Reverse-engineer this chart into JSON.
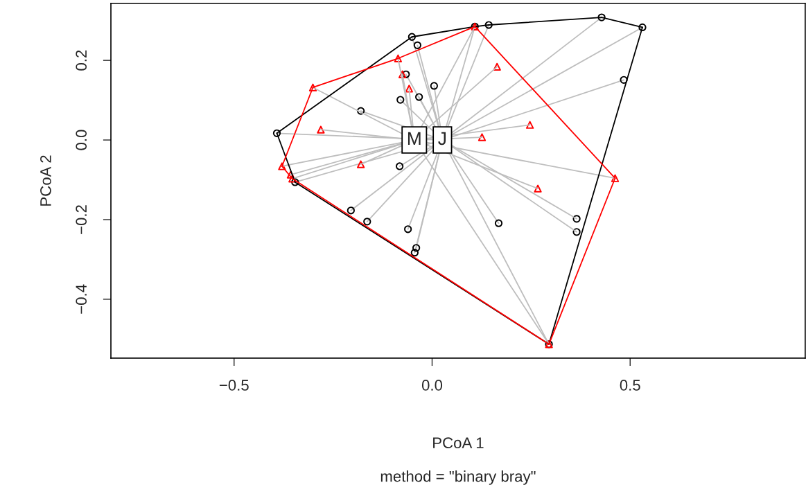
{
  "chart_data": {
    "type": "scatter",
    "xlabel": "PCoA 1",
    "ylabel": "PCoA 2",
    "subtitle": "method = \"binary bray\"",
    "xlim": [
      -0.811,
      0.942
    ],
    "ylim": [
      -0.548,
      0.343
    ],
    "xticks": [
      {
        "value": -0.5,
        "label": "−0.5"
      },
      {
        "value": 0,
        "label": "0.0"
      },
      {
        "value": 0.5,
        "label": "0.5"
      }
    ],
    "yticks": [
      {
        "value": -0.4,
        "label": "−0.4"
      },
      {
        "value": -0.2,
        "label": "−0.2"
      },
      {
        "value": 0,
        "label": "0.0"
      },
      {
        "value": 0.2,
        "label": "0.2"
      }
    ],
    "series": [
      {
        "type": "line",
        "color": "#bebebe",
        "x": [
          -0.392,
          0.026
        ],
        "values": [
          0.017,
          0
        ]
      },
      {
        "type": "line",
        "color": "#bebebe",
        "x": [
          -0.051,
          0.026
        ],
        "values": [
          0.259,
          0
        ]
      },
      {
        "type": "line",
        "color": "#bebebe",
        "x": [
          -0.037,
          0.026
        ],
        "values": [
          0.238,
          0
        ]
      },
      {
        "type": "line",
        "color": "#bebebe",
        "x": [
          -0.066,
          0.026
        ],
        "values": [
          0.165,
          0
        ]
      },
      {
        "type": "line",
        "color": "#bebebe",
        "x": [
          -0.08,
          0.026
        ],
        "values": [
          0.101,
          0
        ]
      },
      {
        "type": "line",
        "color": "#bebebe",
        "x": [
          -0.033,
          0.026
        ],
        "values": [
          0.108,
          0
        ]
      },
      {
        "type": "line",
        "color": "#bebebe",
        "x": [
          0.005,
          0.026
        ],
        "values": [
          0.136,
          0
        ]
      },
      {
        "type": "line",
        "color": "#bebebe",
        "x": [
          -0.18,
          0.026
        ],
        "values": [
          0.073,
          0
        ]
      },
      {
        "type": "line",
        "color": "#bebebe",
        "x": [
          -0.082,
          0.026
        ],
        "values": [
          -0.066,
          0
        ]
      },
      {
        "type": "line",
        "color": "#bebebe",
        "x": [
          -0.346,
          0.026
        ],
        "values": [
          -0.106,
          0
        ]
      },
      {
        "type": "line",
        "color": "#bebebe",
        "x": [
          -0.205,
          0.026
        ],
        "values": [
          -0.177,
          0
        ]
      },
      {
        "type": "line",
        "color": "#bebebe",
        "x": [
          -0.164,
          0.026
        ],
        "values": [
          -0.205,
          0
        ]
      },
      {
        "type": "line",
        "color": "#bebebe",
        "x": [
          -0.061,
          0.026
        ],
        "values": [
          -0.224,
          0
        ]
      },
      {
        "type": "line",
        "color": "#bebebe",
        "x": [
          -0.04,
          0.026
        ],
        "values": [
          -0.271,
          0
        ]
      },
      {
        "type": "line",
        "color": "#bebebe",
        "x": [
          -0.044,
          0.026
        ],
        "values": [
          -0.283,
          0
        ]
      },
      {
        "type": "line",
        "color": "#bebebe",
        "x": [
          0.026,
          0.108
        ],
        "values": [
          0,
          0.285
        ]
      },
      {
        "type": "line",
        "color": "#bebebe",
        "x": [
          0.026,
          0.143
        ],
        "values": [
          0,
          0.289
        ]
      },
      {
        "type": "line",
        "color": "#bebebe",
        "x": [
          0.026,
          0.428
        ],
        "values": [
          0,
          0.308
        ]
      },
      {
        "type": "line",
        "color": "#bebebe",
        "x": [
          0.026,
          0.531
        ],
        "values": [
          0,
          0.283
        ]
      },
      {
        "type": "line",
        "color": "#bebebe",
        "x": [
          0.026,
          0.484
        ],
        "values": [
          0,
          0.151
        ]
      },
      {
        "type": "line",
        "color": "#bebebe",
        "x": [
          0.026,
          0.168
        ],
        "values": [
          0,
          -0.209
        ]
      },
      {
        "type": "line",
        "color": "#bebebe",
        "x": [
          0.026,
          0.365
        ],
        "values": [
          0,
          -0.198
        ]
      },
      {
        "type": "line",
        "color": "#bebebe",
        "x": [
          0.026,
          0.365
        ],
        "values": [
          0,
          -0.231
        ]
      },
      {
        "type": "line",
        "color": "#bebebe",
        "x": [
          0.026,
          0.295
        ],
        "values": [
          0,
          -0.513
        ]
      },
      {
        "type": "line",
        "color": "#bebebe",
        "x": [
          -0.086,
          -0.045
        ],
        "values": [
          0.205,
          0
        ]
      },
      {
        "type": "line",
        "color": "#bebebe",
        "x": [
          -0.075,
          -0.045
        ],
        "values": [
          0.165,
          0
        ]
      },
      {
        "type": "line",
        "color": "#bebebe",
        "x": [
          -0.058,
          -0.045
        ],
        "values": [
          0.129,
          0
        ]
      },
      {
        "type": "line",
        "color": "#bebebe",
        "x": [
          -0.301,
          -0.045
        ],
        "values": [
          0.132,
          0
        ]
      },
      {
        "type": "line",
        "color": "#bebebe",
        "x": [
          -0.281,
          -0.045
        ],
        "values": [
          0.026,
          0
        ]
      },
      {
        "type": "line",
        "color": "#bebebe",
        "x": [
          -0.18,
          -0.045
        ],
        "values": [
          -0.061,
          0
        ]
      },
      {
        "type": "line",
        "color": "#bebebe",
        "x": [
          -0.379,
          -0.045
        ],
        "values": [
          -0.066,
          0
        ]
      },
      {
        "type": "line",
        "color": "#bebebe",
        "x": [
          -0.357,
          -0.045
        ],
        "values": [
          -0.087,
          0
        ]
      },
      {
        "type": "line",
        "color": "#bebebe",
        "x": [
          -0.353,
          -0.045
        ],
        "values": [
          -0.097,
          0
        ]
      },
      {
        "type": "line",
        "color": "#bebebe",
        "x": [
          -0.045,
          0.108
        ],
        "values": [
          0,
          0.285
        ]
      },
      {
        "type": "line",
        "color": "#bebebe",
        "x": [
          -0.045,
          0.164
        ],
        "values": [
          0,
          0.184
        ]
      },
      {
        "type": "line",
        "color": "#bebebe",
        "x": [
          -0.045,
          0.247
        ],
        "values": [
          0,
          0.038
        ]
      },
      {
        "type": "line",
        "color": "#bebebe",
        "x": [
          -0.045,
          0.126
        ],
        "values": [
          0,
          0.007
        ]
      },
      {
        "type": "line",
        "color": "#bebebe",
        "x": [
          -0.045,
          0.267
        ],
        "values": [
          0,
          -0.122
        ]
      },
      {
        "type": "line",
        "color": "#bebebe",
        "x": [
          -0.045,
          0.462
        ],
        "values": [
          0,
          -0.096
        ]
      },
      {
        "type": "line",
        "color": "#bebebe",
        "x": [
          -0.045,
          0.295
        ],
        "values": [
          0,
          -0.513
        ]
      },
      {
        "type": "line",
        "color": "#000000",
        "x": [
          -0.392,
          -0.051
        ],
        "values": [
          0.017,
          0.259
        ]
      },
      {
        "type": "line",
        "color": "#000000",
        "x": [
          -0.051,
          0.108
        ],
        "values": [
          0.259,
          0.285
        ]
      },
      {
        "type": "line",
        "color": "#000000",
        "x": [
          0.108,
          0.143
        ],
        "values": [
          0.285,
          0.289
        ]
      },
      {
        "type": "line",
        "color": "#000000",
        "x": [
          0.143,
          0.428
        ],
        "values": [
          0.289,
          0.308
        ]
      },
      {
        "type": "line",
        "color": "#000000",
        "x": [
          0.428,
          0.531
        ],
        "values": [
          0.308,
          0.283
        ]
      },
      {
        "type": "line",
        "color": "#000000",
        "x": [
          0.295,
          0.531
        ],
        "values": [
          -0.513,
          0.283
        ]
      },
      {
        "type": "line",
        "color": "#000000",
        "x": [
          -0.346,
          0.295
        ],
        "values": [
          -0.106,
          -0.513
        ]
      },
      {
        "type": "line",
        "color": "#000000",
        "x": [
          -0.392,
          -0.346
        ],
        "values": [
          0.017,
          -0.106
        ]
      },
      {
        "type": "line",
        "color": "#ff0000",
        "x": [
          -0.301,
          -0.086
        ],
        "values": [
          0.132,
          0.205
        ]
      },
      {
        "type": "line",
        "color": "#ff0000",
        "x": [
          -0.086,
          0.108
        ],
        "values": [
          0.205,
          0.285
        ]
      },
      {
        "type": "line",
        "color": "#ff0000",
        "x": [
          0.108,
          0.462
        ],
        "values": [
          0.285,
          -0.096
        ]
      },
      {
        "type": "line",
        "color": "#ff0000",
        "x": [
          0.295,
          0.462
        ],
        "values": [
          -0.513,
          -0.096
        ]
      },
      {
        "type": "line",
        "color": "#ff0000",
        "x": [
          -0.353,
          0.295
        ],
        "values": [
          -0.097,
          -0.513
        ]
      },
      {
        "type": "line",
        "color": "#ff0000",
        "x": [
          -0.379,
          -0.353
        ],
        "values": [
          -0.066,
          -0.097
        ]
      },
      {
        "type": "line",
        "color": "#ff0000",
        "x": [
          -0.379,
          -0.301
        ],
        "values": [
          -0.066,
          0.132
        ]
      },
      {
        "color": "#000000",
        "marker": "circle",
        "x": [
          -0.392,
          -0.051,
          -0.037,
          -0.066,
          -0.08,
          -0.033,
          0.005,
          -0.18,
          -0.082,
          -0.346,
          -0.205,
          -0.164,
          -0.061,
          -0.04,
          -0.044,
          0.108,
          0.143,
          0.428,
          0.531,
          0.484,
          0.168,
          0.365,
          0.365,
          0.295
        ],
        "values": [
          0.017,
          0.259,
          0.238,
          0.165,
          0.101,
          0.108,
          0.136,
          0.073,
          -0.066,
          -0.106,
          -0.177,
          -0.205,
          -0.224,
          -0.271,
          -0.283,
          0.285,
          0.289,
          0.308,
          0.283,
          0.151,
          -0.209,
          -0.198,
          -0.231,
          -0.513
        ]
      },
      {
        "color": "#ff0000",
        "marker": "triangle",
        "x": [
          -0.086,
          -0.075,
          -0.058,
          -0.301,
          -0.281,
          -0.18,
          -0.379,
          -0.357,
          -0.353,
          0.108,
          0.164,
          0.247,
          0.126,
          0.267,
          0.462,
          0.295
        ],
        "values": [
          0.205,
          0.165,
          0.129,
          0.132,
          0.026,
          -0.061,
          -0.066,
          -0.087,
          -0.097,
          0.285,
          0.184,
          0.038,
          0.007,
          -0.122,
          -0.096,
          -0.513
        ]
      }
    ],
    "annotations": [
      {
        "text": "M",
        "x": -0.045,
        "y": 0
      },
      {
        "text": "J",
        "x": 0.026,
        "y": 0
      }
    ]
  }
}
